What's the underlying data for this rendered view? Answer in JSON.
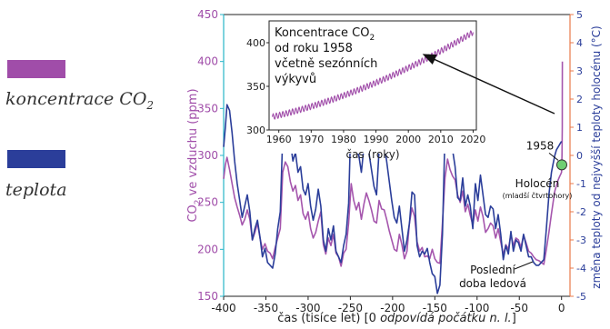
{
  "legend": {
    "co2_prefix": "koncentrace CO",
    "co2_sub": "2",
    "temp_label": "teplota",
    "co2_color": "#a04da9",
    "temp_color": "#2b3e9a"
  },
  "chart_data": {
    "type": "line",
    "xlabel_prefix": "čas (tisíce let) [0 ",
    "xlabel_italic": "odpovídá počátku n. l.",
    "xlabel_suffix": "]",
    "ylabel_left_prefix": "CO",
    "ylabel_left_sub": "2",
    "ylabel_left_suffix": " ve vzduchu (ppm)",
    "ylabel_right": "změna teploty od nejvyšší teploty holocénu (°C)",
    "xlim": [
      -400,
      10
    ],
    "ylim_left": [
      150,
      450
    ],
    "ylim_right": [
      -5,
      5
    ],
    "x_ticks": [
      "-400",
      "-350",
      "-300",
      "-250",
      "-200",
      "-150",
      "-100",
      "-50",
      "0"
    ],
    "y_ticks_left": [
      "150",
      "200",
      "250",
      "300",
      "350",
      "400",
      "450"
    ],
    "y_ticks_right": [
      "-5",
      "-4",
      "-3",
      "-2",
      "-1",
      "0",
      "1",
      "2",
      "3",
      "4",
      "5"
    ],
    "series": [
      {
        "name": "koncentrace CO2",
        "axis": "left",
        "color": "#a04da9",
        "x": [
          -400,
          -398,
          -396,
          -393,
          -390,
          -387,
          -384,
          -381,
          -378,
          -375,
          -372,
          -369,
          -366,
          -363,
          -360,
          -357,
          -354,
          -351,
          -348,
          -345,
          -342,
          -339,
          -336,
          -333,
          -330,
          -327,
          -324,
          -321,
          -318,
          -315,
          -312,
          -309,
          -306,
          -303,
          -300,
          -297,
          -294,
          -291,
          -288,
          -285,
          -282,
          -279,
          -276,
          -273,
          -270,
          -267,
          -264,
          -261,
          -258,
          -255,
          -252,
          -249,
          -246,
          -243,
          -240,
          -237,
          -234,
          -231,
          -228,
          -225,
          -222,
          -219,
          -216,
          -213,
          -210,
          -207,
          -204,
          -201,
          -198,
          -195,
          -192,
          -189,
          -186,
          -183,
          -180,
          -177,
          -174,
          -171,
          -168,
          -165,
          -162,
          -159,
          -156,
          -153,
          -150,
          -147,
          -144,
          -141,
          -138,
          -135,
          -132,
          -129,
          -126,
          -123,
          -120,
          -117,
          -114,
          -111,
          -108,
          -105,
          -102,
          -99,
          -96,
          -93,
          -90,
          -87,
          -84,
          -81,
          -78,
          -75,
          -72,
          -69,
          -66,
          -63,
          -60,
          -57,
          -54,
          -51,
          -48,
          -45,
          -42,
          -39,
          -36,
          -33,
          -30,
          -27,
          -24,
          -21,
          -18,
          -15,
          -12,
          -10,
          -8,
          -6,
          -4,
          -2,
          -1,
          0,
          0.5,
          0.8,
          0.9,
          1.0
        ],
        "y": [
          275,
          290,
          298,
          285,
          270,
          255,
          245,
          236,
          226,
          232,
          242,
          232,
          210,
          218,
          228,
          212,
          200,
          206,
          198,
          196,
          190,
          202,
          212,
          222,
          282,
          293,
          288,
          272,
          262,
          268,
          252,
          258,
          238,
          232,
          240,
          222,
          212,
          218,
          230,
          240,
          205,
          195,
          212,
          204,
          216,
          196,
          192,
          182,
          196,
          200,
          228,
          270,
          252,
          242,
          250,
          232,
          248,
          260,
          252,
          242,
          230,
          228,
          252,
          243,
          242,
          232,
          220,
          210,
          200,
          198,
          216,
          205,
          190,
          198,
          228,
          244,
          235,
          208,
          198,
          202,
          192,
          193,
          190,
          200,
          190,
          186,
          185,
          228,
          276,
          296,
          285,
          278,
          274,
          258,
          250,
          262,
          240,
          248,
          236,
          226,
          242,
          230,
          245,
          235,
          218,
          222,
          228,
          225,
          212,
          222,
          208,
          194,
          205,
          200,
          216,
          204,
          212,
          210,
          202,
          215,
          207,
          198,
          196,
          192,
          189,
          188,
          186,
          184,
          200,
          218,
          238,
          250,
          262,
          268,
          274,
          278,
          280,
          282,
          300,
          330,
          360,
          400
        ]
      },
      {
        "name": "teplota",
        "axis": "right",
        "color": "#2b3e9a",
        "x": [
          -400,
          -398,
          -396,
          -393,
          -390,
          -387,
          -384,
          -381,
          -378,
          -375,
          -372,
          -369,
          -366,
          -363,
          -360,
          -357,
          -354,
          -351,
          -348,
          -345,
          -342,
          -339,
          -336,
          -333,
          -330,
          -327,
          -324,
          -321,
          -318,
          -315,
          -312,
          -309,
          -306,
          -303,
          -300,
          -297,
          -294,
          -291,
          -288,
          -285,
          -282,
          -279,
          -276,
          -273,
          -270,
          -267,
          -264,
          -261,
          -258,
          -255,
          -252,
          -249,
          -246,
          -243,
          -240,
          -237,
          -234,
          -231,
          -228,
          -225,
          -222,
          -219,
          -216,
          -213,
          -210,
          -207,
          -204,
          -201,
          -198,
          -195,
          -192,
          -189,
          -186,
          -183,
          -180,
          -177,
          -174,
          -171,
          -168,
          -165,
          -162,
          -159,
          -156,
          -153,
          -150,
          -147,
          -144,
          -141,
          -138,
          -135,
          -132,
          -129,
          -126,
          -123,
          -120,
          -117,
          -114,
          -111,
          -108,
          -105,
          -102,
          -99,
          -96,
          -93,
          -90,
          -87,
          -84,
          -81,
          -78,
          -75,
          -72,
          -69,
          -66,
          -63,
          -60,
          -57,
          -54,
          -51,
          -48,
          -45,
          -42,
          -39,
          -36,
          -33,
          -30,
          -27,
          -24,
          -21,
          -18,
          -15,
          -12,
          -10,
          -8,
          -6,
          -4,
          -2,
          0
        ],
        "y": [
          0.3,
          1.0,
          1.8,
          1.6,
          0.8,
          -0.2,
          -1.0,
          -1.6,
          -2.2,
          -1.8,
          -1.4,
          -2.0,
          -3.0,
          -2.6,
          -2.3,
          -2.9,
          -3.6,
          -3.3,
          -3.8,
          -3.9,
          -4.0,
          -3.5,
          -2.6,
          -2.0,
          0.7,
          1.2,
          1.1,
          0.5,
          -0.2,
          0.1,
          -0.6,
          -0.4,
          -1.2,
          -1.4,
          -1.0,
          -1.8,
          -2.3,
          -1.9,
          -1.2,
          -1.8,
          -3.0,
          -3.4,
          -2.6,
          -3.0,
          -2.5,
          -3.4,
          -3.6,
          -3.8,
          -3.2,
          -2.8,
          -1.7,
          1.6,
          0.8,
          0.2,
          0.0,
          -0.6,
          0.3,
          0.6,
          0.1,
          -0.5,
          -1.1,
          -1.4,
          0.2,
          0.5,
          0.4,
          -0.2,
          -0.9,
          -1.6,
          -2.2,
          -2.4,
          -1.8,
          -2.6,
          -3.4,
          -3.0,
          -2.4,
          -1.3,
          -1.4,
          -3.2,
          -3.6,
          -3.4,
          -3.5,
          -3.3,
          -3.8,
          -4.2,
          -4.3,
          -4.9,
          -4.6,
          -2.8,
          0.8,
          1.8,
          1.2,
          0.2,
          -0.4,
          -1.5,
          -1.6,
          -0.8,
          -1.8,
          -1.4,
          -1.8,
          -2.6,
          -1.0,
          -1.6,
          -0.7,
          -1.4,
          -2.1,
          -2.2,
          -1.8,
          -1.9,
          -2.6,
          -2.1,
          -2.8,
          -3.7,
          -3.2,
          -3.5,
          -2.7,
          -3.4,
          -3.0,
          -3.1,
          -3.4,
          -2.8,
          -3.2,
          -3.6,
          -3.6,
          -3.8,
          -3.9,
          -3.9,
          -3.8,
          -3.7,
          -2.6,
          -1.4,
          -0.6,
          -0.3,
          0.0,
          0.2,
          0.3,
          0.4,
          0.5
        ]
      }
    ],
    "marker": {
      "x": 0.3,
      "y_left": 290,
      "color": "#6fcf73"
    },
    "annotations": {
      "year_1958": "1958",
      "holocene": "Holocén",
      "holocene_sub": "(mladší čtvrtohory)",
      "lgm_line1": "Poslední",
      "lgm_line2": "doba ledová"
    },
    "inset": {
      "type": "line",
      "title_prefix": "Koncentrace CO",
      "title_sub": "2",
      "title_line2": "od roku 1958",
      "title_line3": "včetně sezónních",
      "title_line4": "výkyvů",
      "xlabel": "čas (roky)",
      "xlim": [
        1957,
        2021
      ],
      "ylim": [
        300,
        425
      ],
      "x_ticks": [
        "1960",
        "1970",
        "1980",
        "1990",
        "2000",
        "2010",
        "2020"
      ],
      "y_ticks": [
        "300",
        "350",
        "400"
      ],
      "color": "#a04da9",
      "trend": {
        "start_year": 1958,
        "end_year": 2020,
        "start_ppm": 315,
        "end_ppm": 412,
        "seasonal_amplitude": 3.2
      }
    }
  }
}
